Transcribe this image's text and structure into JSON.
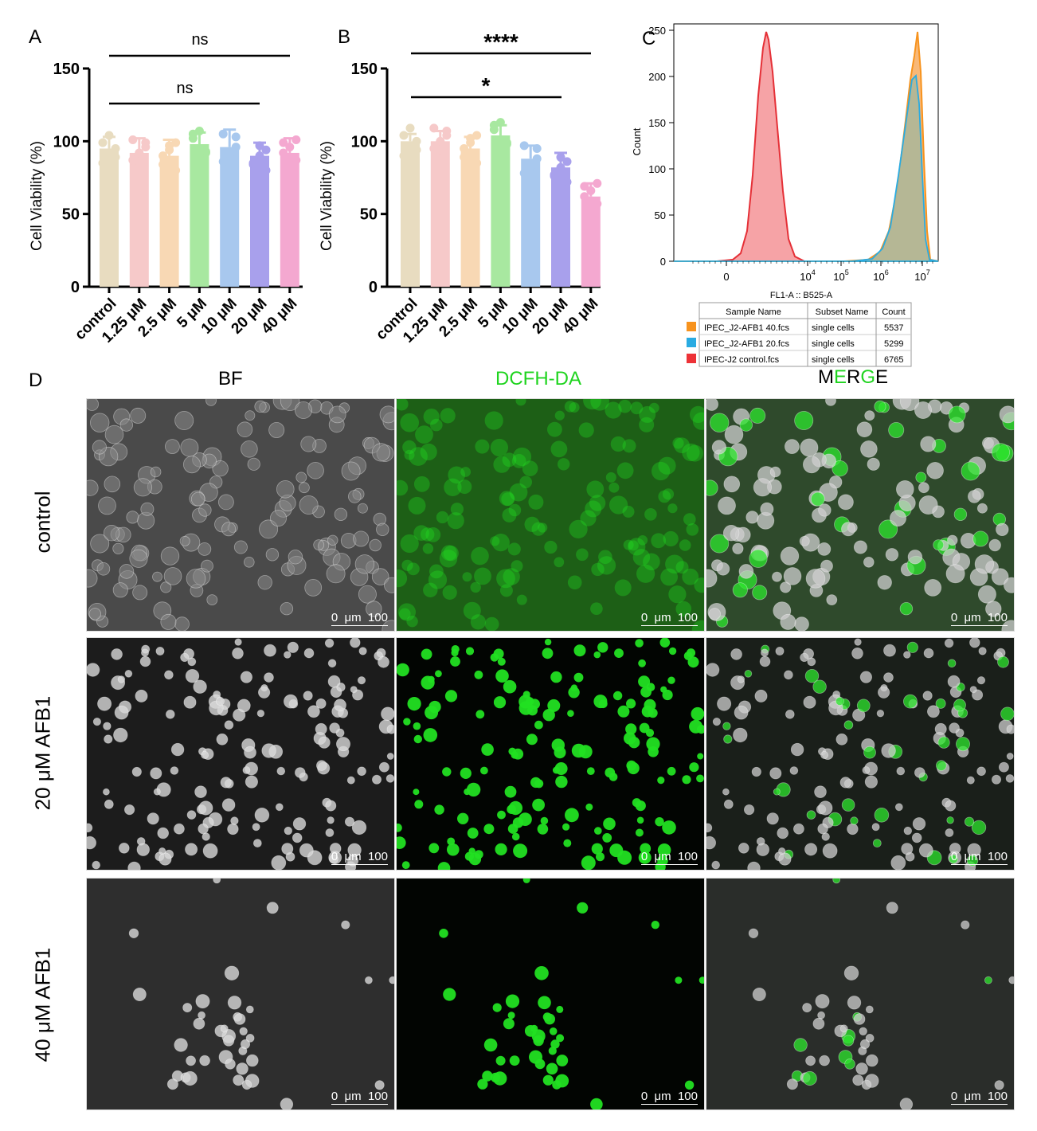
{
  "panelA": {
    "letter": "A",
    "ylabel": "Cell Viability  (%)",
    "yticks": [
      "0",
      "50",
      "100",
      "150"
    ],
    "sig": [
      {
        "text": "ns"
      },
      {
        "text": "ns"
      }
    ]
  },
  "panelB": {
    "letter": "B",
    "ylabel": "Cell Viability  (%)",
    "yticks": [
      "0",
      "50",
      "100",
      "150"
    ],
    "sig": [
      {
        "text": "****"
      },
      {
        "text": "*"
      }
    ]
  },
  "panelC": {
    "letter": "C",
    "ylabel": "Count",
    "xlabel": "FL1-A :: B525-A",
    "yticks": [
      "0",
      "50",
      "100",
      "150",
      "200",
      "250"
    ],
    "xticks": [
      {
        "base": "0",
        "exp": ""
      },
      {
        "base": "10",
        "exp": "4"
      },
      {
        "base": "10",
        "exp": "5"
      },
      {
        "base": "10",
        "exp": "6"
      },
      {
        "base": "10",
        "exp": "7"
      }
    ],
    "table": {
      "headers": [
        "Sample Name",
        "Subset Name",
        "Count"
      ],
      "rows": [
        {
          "sample": "IPEC_J2-AFB1 40.fcs",
          "subset": "single cells",
          "count": "5537",
          "color": "#f7931e"
        },
        {
          "sample": "IPEC_J2-AFB1 20.fcs",
          "subset": "single cells",
          "count": "5299",
          "color": "#29abe2"
        },
        {
          "sample": "IPEC-J2 control.fcs",
          "subset": "single cells",
          "count": "6765",
          "color": "#ed3237"
        }
      ]
    }
  },
  "panelD": {
    "letter": "D",
    "columns": [
      "BF",
      "DCFH-DA"
    ],
    "merge": {
      "m": "M",
      "e1": "E",
      "r": "R",
      "g": "G",
      "e2": "E"
    },
    "rows": [
      "control",
      "20 μM AFB1",
      "40 μM AFB1"
    ],
    "scalebar": "0  μm  100"
  },
  "chart_data": [
    {
      "type": "bar",
      "panel": "A",
      "categories": [
        "control",
        "1.25 μM",
        "2.5 μM",
        "5 μM",
        "10 μM",
        "20 μM",
        "40 μM"
      ],
      "values": [
        95,
        92,
        90,
        98,
        96,
        90,
        92
      ],
      "errors": [
        8,
        10,
        11,
        8,
        12,
        9,
        10
      ],
      "colors": [
        "#e8dcc0",
        "#f6c9c9",
        "#f8d8b4",
        "#a8e8a0",
        "#a8c8ee",
        "#a8a0ec",
        "#f4a8d0"
      ],
      "ylabel": "Cell Viability  (%)",
      "ylim": [
        0,
        150
      ]
    },
    {
      "type": "bar",
      "panel": "B",
      "categories": [
        "control",
        "1.25 μM",
        "2.5 μM",
        "5 μM",
        "10 μM",
        "20 μM",
        "40 μM"
      ],
      "values": [
        100,
        100,
        95,
        104,
        88,
        82,
        62
      ],
      "errors": [
        5,
        7,
        8,
        7,
        9,
        10,
        9
      ],
      "colors": [
        "#e8dcc0",
        "#f6c9c9",
        "#f8d8b4",
        "#a8e8a0",
        "#a8c8ee",
        "#a8a0ec",
        "#f4a8d0"
      ],
      "ylabel": "Cell Viability  (%)",
      "ylim": [
        0,
        150
      ]
    },
    {
      "type": "area",
      "panel": "C",
      "xlabel": "FL1-A :: B525-A",
      "ylabel": "Count",
      "ylim": [
        0,
        250
      ],
      "series": [
        {
          "name": "IPEC-J2 control.fcs",
          "color": "#ed3237",
          "peak_x": "~10^2.5",
          "peak_y": 245
        },
        {
          "name": "IPEC_J2-AFB1 20.fcs",
          "color": "#29abe2",
          "peak_x": "~10^6.5",
          "peak_y": 205
        },
        {
          "name": "IPEC_J2-AFB1 40.fcs",
          "color": "#f7931e",
          "peak_x": "~10^6.8",
          "peak_y": 245
        }
      ]
    }
  ]
}
